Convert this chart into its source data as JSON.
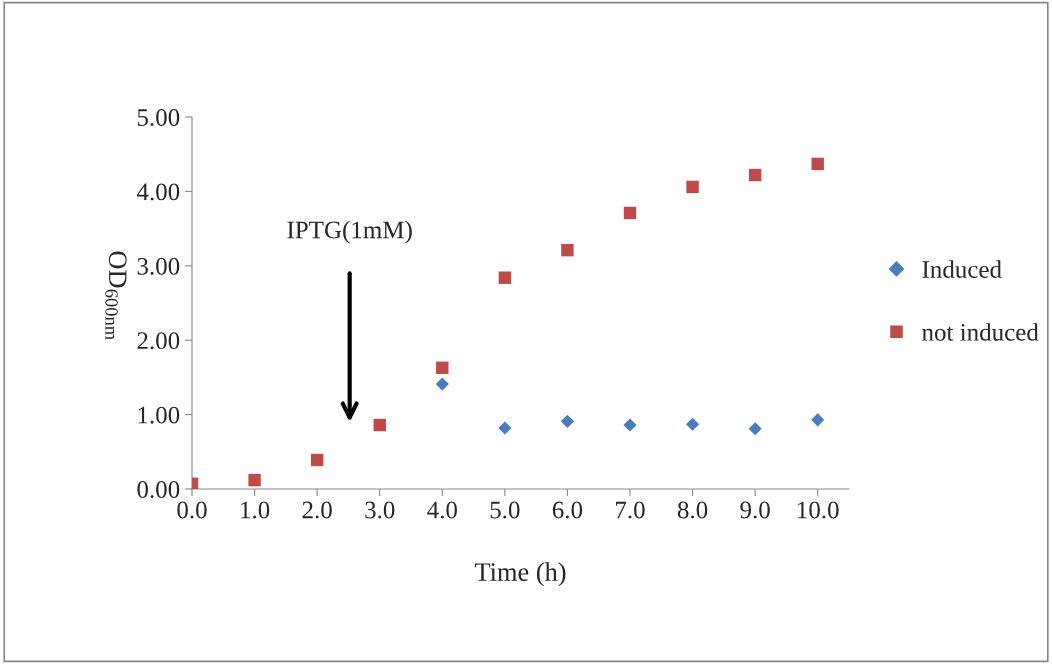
{
  "chart_data": {
    "type": "scatter",
    "xlabel": "Time (h)",
    "ylabel": "OD$_{600nm}$",
    "x": [
      0,
      1,
      2,
      3,
      4,
      5,
      6,
      7,
      8,
      9,
      10
    ],
    "series": [
      {
        "name": "Induced",
        "color": "#4a7ebb",
        "marker": "diamond",
        "values": [
          null,
          null,
          null,
          null,
          1.41,
          0.82,
          0.91,
          0.86,
          0.87,
          0.81,
          0.93
        ]
      },
      {
        "name": "not induced",
        "color": "#be4b48",
        "marker": "square",
        "values": [
          0.07,
          0.12,
          0.39,
          0.86,
          1.63,
          2.84,
          3.21,
          3.71,
          4.06,
          4.22,
          4.37
        ]
      }
    ],
    "xlim": [
      0,
      10.5
    ],
    "ylim": [
      0,
      5
    ],
    "xticks": [
      {
        "value": 0,
        "label": "0.0"
      },
      {
        "value": 1,
        "label": "1.0"
      },
      {
        "value": 2,
        "label": "2.0"
      },
      {
        "value": 3,
        "label": "3.0"
      },
      {
        "value": 4,
        "label": "4.0"
      },
      {
        "value": 5,
        "label": "5.0"
      },
      {
        "value": 6,
        "label": "6.0"
      },
      {
        "value": 7,
        "label": "7.0"
      },
      {
        "value": 8,
        "label": "8.0"
      },
      {
        "value": 9,
        "label": "9.0"
      },
      {
        "value": 10,
        "label": "10.0"
      }
    ],
    "yticks": [
      {
        "value": 0,
        "label": "0.00"
      },
      {
        "value": 1,
        "label": "1.00"
      },
      {
        "value": 2,
        "label": "2.00"
      },
      {
        "value": 3,
        "label": "3.00"
      },
      {
        "value": 4,
        "label": "4.00"
      },
      {
        "value": 5,
        "label": "5.00"
      }
    ],
    "annotations": [
      "IPTG(1mM)"
    ],
    "grid": false,
    "legend": "right"
  }
}
